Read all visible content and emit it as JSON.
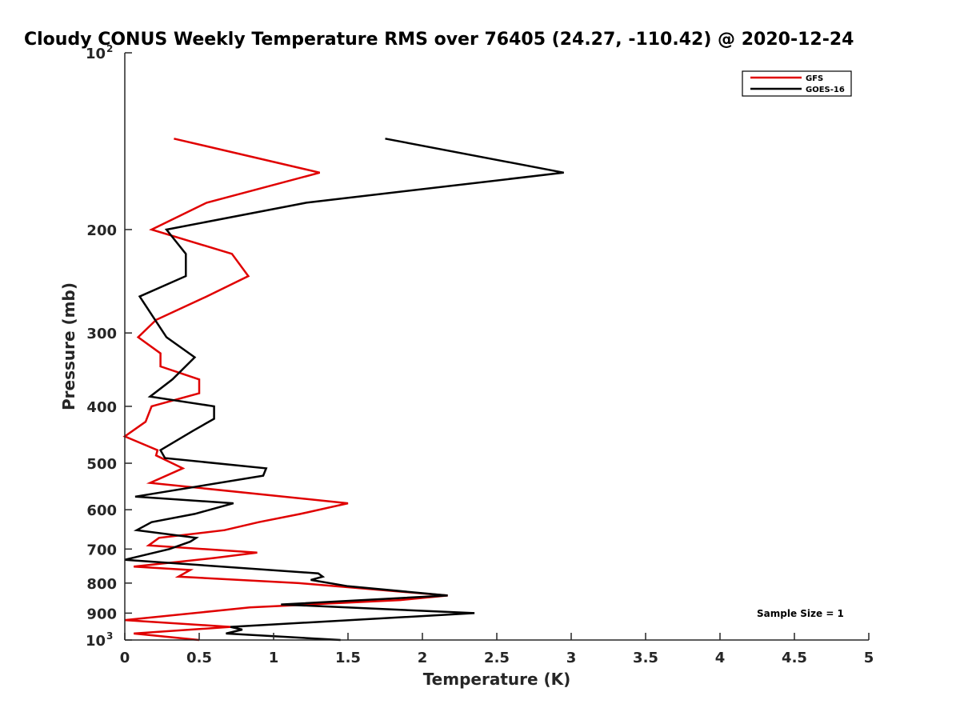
{
  "chart_data": {
    "type": "line",
    "title": "Cloudy CONUS Weekly Temperature RMS over 76405 (24.27, -110.42) @ 2020-12-24",
    "xlabel": "Temperature (K)",
    "ylabel": "Pressure (mb)",
    "xlim": [
      0,
      5
    ],
    "ylim": [
      100,
      1000
    ],
    "yscale": "log",
    "y_reversed": true,
    "x_ticks": [
      "0",
      "0.5",
      "1",
      "1.5",
      "2",
      "2.5",
      "3",
      "3.5",
      "4",
      "4.5",
      "5"
    ],
    "y_ticks": [
      {
        "value": 100,
        "base": "10",
        "exp": "2"
      },
      {
        "value": 200,
        "label": "200"
      },
      {
        "value": 300,
        "label": "300"
      },
      {
        "value": 400,
        "label": "400"
      },
      {
        "value": 500,
        "label": "500"
      },
      {
        "value": 600,
        "label": "600"
      },
      {
        "value": 700,
        "label": "700"
      },
      {
        "value": 800,
        "label": "800"
      },
      {
        "value": 900,
        "label": "900"
      },
      {
        "value": 1000,
        "base": "10",
        "exp": "3"
      }
    ],
    "legend_position": "top-right",
    "annotation": "Sample Size = 1",
    "series": [
      {
        "name": "GFS",
        "color": "#e00000",
        "points": [
          [
            0.33,
            140
          ],
          [
            1.31,
            160
          ],
          [
            0.55,
            180
          ],
          [
            0.18,
            200
          ],
          [
            0.72,
            220
          ],
          [
            0.83,
            240
          ],
          [
            0.55,
            260
          ],
          [
            0.21,
            285
          ],
          [
            0.09,
            305
          ],
          [
            0.24,
            325
          ],
          [
            0.24,
            342
          ],
          [
            0.5,
            360
          ],
          [
            0.5,
            380
          ],
          [
            0.18,
            400
          ],
          [
            0.14,
            425
          ],
          [
            0.0,
            450
          ],
          [
            0.22,
            475
          ],
          [
            0.21,
            485
          ],
          [
            0.39,
            510
          ],
          [
            0.17,
            540
          ],
          [
            1.5,
            585
          ],
          [
            1.18,
            610
          ],
          [
            0.9,
            630
          ],
          [
            0.67,
            650
          ],
          [
            0.23,
            670
          ],
          [
            0.16,
            690
          ],
          [
            0.89,
            710
          ],
          [
            0.6,
            725
          ],
          [
            0.06,
            750
          ],
          [
            0.44,
            760
          ],
          [
            0.36,
            780
          ],
          [
            1.17,
            800
          ],
          [
            2.17,
            840
          ],
          [
            1.85,
            855
          ],
          [
            0.84,
            880
          ],
          [
            0.0,
            925
          ],
          [
            0.71,
            950
          ],
          [
            0.06,
            975
          ],
          [
            0.5,
            1000
          ]
        ]
      },
      {
        "name": "GOES-16",
        "color": "#000000",
        "points": [
          [
            1.75,
            140
          ],
          [
            2.95,
            160
          ],
          [
            1.22,
            180
          ],
          [
            0.28,
            200
          ],
          [
            0.41,
            220
          ],
          [
            0.41,
            240
          ],
          [
            0.1,
            260
          ],
          [
            0.28,
            305
          ],
          [
            0.47,
            330
          ],
          [
            0.32,
            360
          ],
          [
            0.17,
            385
          ],
          [
            0.6,
            400
          ],
          [
            0.6,
            420
          ],
          [
            0.46,
            440
          ],
          [
            0.24,
            475
          ],
          [
            0.27,
            490
          ],
          [
            0.95,
            510
          ],
          [
            0.93,
            525
          ],
          [
            0.07,
            570
          ],
          [
            0.73,
            585
          ],
          [
            0.47,
            610
          ],
          [
            0.18,
            630
          ],
          [
            0.08,
            650
          ],
          [
            0.48,
            670
          ],
          [
            0.44,
            680
          ],
          [
            0.3,
            700
          ],
          [
            0.0,
            730
          ],
          [
            1.3,
            770
          ],
          [
            1.33,
            780
          ],
          [
            1.25,
            790
          ],
          [
            1.5,
            810
          ],
          [
            2.17,
            840
          ],
          [
            1.05,
            870
          ],
          [
            2.35,
            900
          ],
          [
            0.71,
            950
          ],
          [
            0.79,
            960
          ],
          [
            0.68,
            975
          ],
          [
            1.45,
            1000
          ]
        ]
      }
    ]
  }
}
